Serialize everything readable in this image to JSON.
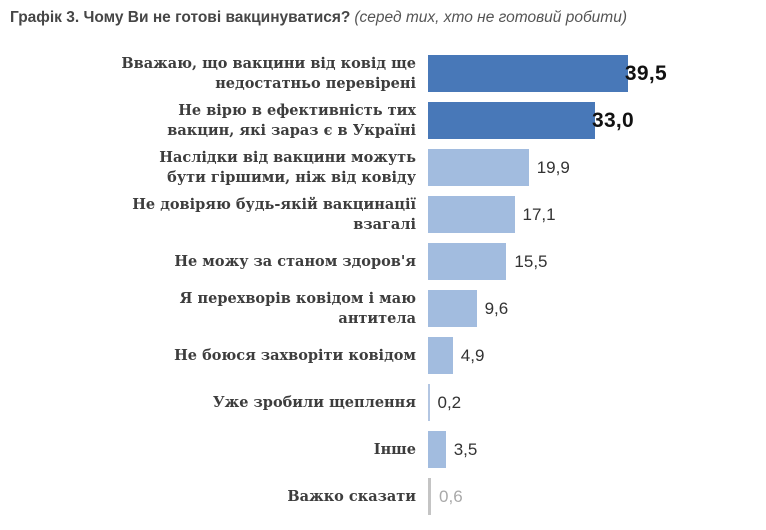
{
  "header": {
    "title": "Графік 3. Чому Ви не готові вакцинуватися?",
    "subtitle": "(серед тих, хто не готовий робити)"
  },
  "chart_data": {
    "type": "bar",
    "orientation": "horizontal",
    "title": "Графік 3. Чому Ви не готові вакцинуватися?",
    "subtitle": "(серед тих, хто не готовий робити)",
    "xlim": [
      0,
      42
    ],
    "grid": false,
    "legend": false,
    "categories": [
      "Вважаю, що вакцини від ковід ще недостатньо перевірені",
      "Не вірю в ефективність тих вакцин, які зараз є в Україні",
      "Наслідки від вакцини можуть бути гіршими, ніж від ковіду",
      "Не довіряю будь-якій вакцинації взагалі",
      "Не можу за станом здоров'я",
      "Я перехворів ковідом і маю антитела",
      "Не боюся захворіти ковідом",
      "Уже зробили щеплення",
      "Інше",
      "Важко сказати"
    ],
    "values": [
      39.5,
      33.0,
      19.9,
      17.1,
      15.5,
      9.6,
      4.9,
      0.2,
      3.5,
      0.6
    ],
    "value_labels": [
      "39,5",
      "33,0",
      "19,9",
      "17,1",
      "15,5",
      "9,6",
      "4,9",
      "0,2",
      "3,5",
      "0,6"
    ],
    "bar_colors": [
      "#4878b8",
      "#4878b8",
      "#a2bcdf",
      "#a2bcdf",
      "#a2bcdf",
      "#a2bcdf",
      "#a2bcdf",
      "#b3c6e2",
      "#a2bcdf",
      "#c4c4c4"
    ],
    "value_styles": [
      "big",
      "big",
      "normal",
      "normal",
      "normal",
      "normal",
      "normal",
      "normal",
      "normal",
      "muted"
    ],
    "colors": {
      "bar_dark": "#4878b8",
      "bar_light": "#a2bcdf",
      "bar_gray": "#c4c4c4",
      "value_muted": "#a9a9a9",
      "label_text": "#3d3d3d",
      "title_text": "#464646"
    }
  }
}
